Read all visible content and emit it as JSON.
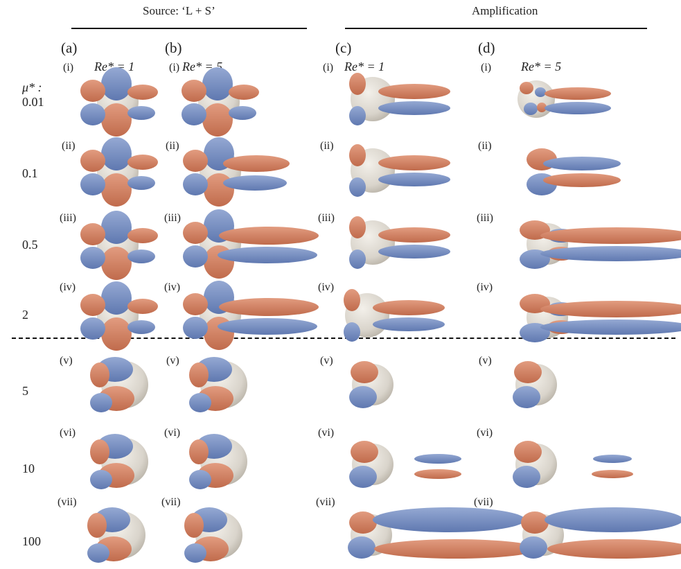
{
  "headers": {
    "source": "Source: ‘L + S’",
    "amplification": "Amplification"
  },
  "columns": [
    {
      "label": "(a)",
      "re": "Re* = 1"
    },
    {
      "label": "(b)",
      "re": "Re* = 5"
    },
    {
      "label": "(c)",
      "re": "Re* = 1"
    },
    {
      "label": "(d)",
      "re": "Re* = 5"
    }
  ],
  "mu_label": "μ* :",
  "rows": [
    {
      "roman": "(i)",
      "mu": "0.01"
    },
    {
      "roman": "(ii)",
      "mu": "0.1"
    },
    {
      "roman": "(iii)",
      "mu": "0.5"
    },
    {
      "roman": "(iv)",
      "mu": "2"
    },
    {
      "roman": "(v)",
      "mu": "5"
    },
    {
      "roman": "(vi)",
      "mu": "10"
    },
    {
      "roman": "(vii)",
      "mu": "100"
    }
  ],
  "colors": {
    "blue_lobe": "#7b92c4",
    "orange_lobe": "#d4866a",
    "sphere": "#d9d4cb"
  }
}
